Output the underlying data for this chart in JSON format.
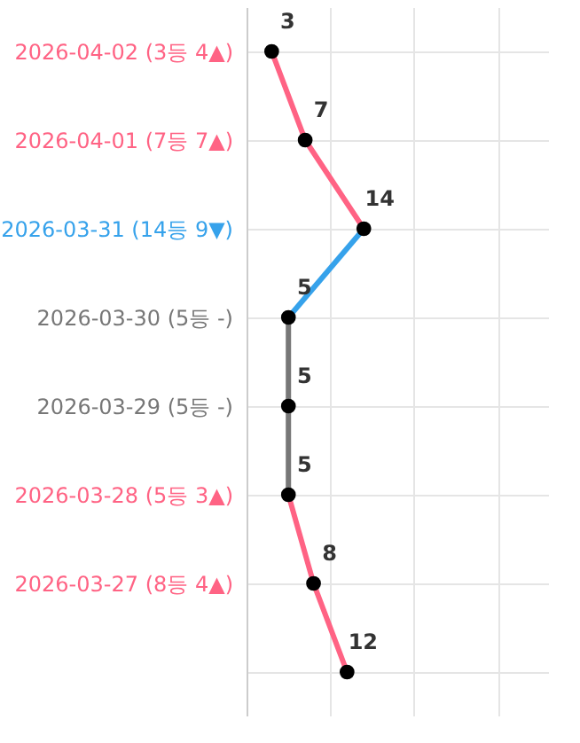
{
  "chart_data": {
    "type": "line",
    "orientation": "horizontal",
    "categories": [
      "2026-04-02 (3등 4▲)",
      "2026-04-01 (7등 7▲)",
      "2026-03-31 (14등 9▼)",
      "2026-03-30 (5등 -)",
      "2026-03-29 (5등 -)",
      "2026-03-28 (5등 3▲)",
      "2026-03-27 (8등 4▲)",
      null
    ],
    "series": [
      {
        "color": "#ff6384",
        "values": [
          3,
          7,
          14,
          null,
          null,
          5,
          8,
          12
        ]
      },
      {
        "color": "#36a2eb",
        "values": [
          null,
          null,
          14,
          5,
          null,
          null,
          null,
          null
        ]
      },
      {
        "color": "#777777",
        "values": [
          null,
          null,
          null,
          5,
          5,
          5,
          null,
          null
        ]
      },
      {
        "type": "scatter",
        "color": "#000000",
        "values": [
          3,
          7,
          14,
          5,
          5,
          5,
          8,
          12
        ],
        "value_labels": [
          "3",
          "7",
          "14",
          "5",
          "5",
          "5",
          "8",
          "12"
        ]
      }
    ],
    "xlim": [
      0,
      36
    ],
    "xticks": [
      {
        "value": 0,
        "label": null
      },
      {
        "value": 10,
        "label": null
      },
      {
        "value": 20,
        "label": null
      },
      {
        "value": 30,
        "label": null
      }
    ],
    "tick_labels": "y",
    "grid": true
  }
}
